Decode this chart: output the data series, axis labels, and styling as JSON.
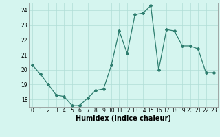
{
  "x": [
    0,
    1,
    2,
    3,
    4,
    5,
    6,
    7,
    8,
    9,
    10,
    11,
    12,
    13,
    14,
    15,
    16,
    17,
    18,
    19,
    20,
    21,
    22,
    23
  ],
  "y": [
    20.3,
    19.7,
    19.0,
    18.3,
    18.2,
    17.6,
    17.6,
    18.1,
    18.6,
    18.7,
    20.3,
    22.6,
    21.1,
    23.7,
    23.8,
    24.3,
    20.0,
    22.7,
    22.6,
    21.6,
    21.6,
    21.4,
    19.8,
    19.8
  ],
  "xlabel": "Humidex (Indice chaleur)",
  "ylim": [
    17.5,
    24.5
  ],
  "xlim": [
    -0.5,
    23.5
  ],
  "yticks": [
    18,
    19,
    20,
    21,
    22,
    23,
    24
  ],
  "xticks": [
    0,
    1,
    2,
    3,
    4,
    5,
    6,
    7,
    8,
    9,
    10,
    11,
    12,
    13,
    14,
    15,
    16,
    17,
    18,
    19,
    20,
    21,
    22,
    23
  ],
  "line_color": "#2d7d6e",
  "bg_color": "#d5f5ef",
  "grid_color": "#b0ddd6",
  "marker": "D",
  "marker_size": 2.0,
  "line_width": 0.9,
  "tick_fontsize": 5.5,
  "xlabel_fontsize": 7.0
}
